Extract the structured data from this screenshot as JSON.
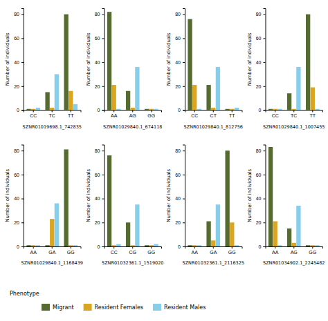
{
  "chart_data": [
    {
      "type": "bar",
      "xlabel": "SZNR01019698.1_742835",
      "ylabel": "Number of individuals",
      "categories": [
        "CC",
        "TC",
        "TT"
      ],
      "series": [
        {
          "name": "Migrant",
          "color": "#556B2F",
          "values": [
            1,
            15,
            80
          ]
        },
        {
          "name": "Resident Females",
          "color": "#DAA520",
          "values": [
            1,
            2,
            16
          ]
        },
        {
          "name": "Resident Males",
          "color": "#87CEEB",
          "values": [
            2,
            30,
            5
          ]
        }
      ],
      "ylim": [
        0,
        85
      ],
      "yticks": [
        0,
        20,
        40,
        60,
        80
      ],
      "grid": false,
      "legend": "lower left",
      "annotations": [
        "Phenotype"
      ]
    },
    {
      "type": "bar",
      "xlabel": "SZNR01029840.1_674118",
      "ylabel": "Number of individuals",
      "categories": [
        "AA",
        "AG",
        "GG"
      ],
      "series": [
        {
          "name": "Migrant",
          "color": "#556B2F",
          "values": [
            82,
            16,
            1
          ]
        },
        {
          "name": "Resident Females",
          "color": "#DAA520",
          "values": [
            21,
            2,
            1
          ]
        },
        {
          "name": "Resident Males",
          "color": "#87CEEB",
          "values": [
            1,
            36,
            1
          ]
        }
      ],
      "ylim": [
        0,
        85
      ],
      "yticks": [
        0,
        20,
        40,
        60,
        80
      ],
      "grid": false
    },
    {
      "type": "bar",
      "xlabel": "SZNR01029840.1_812756",
      "ylabel": "Number of individuals",
      "categories": [
        "CC",
        "CT",
        "TT"
      ],
      "series": [
        {
          "name": "Migrant",
          "color": "#556B2F",
          "values": [
            76,
            21,
            1
          ]
        },
        {
          "name": "Resident Females",
          "color": "#DAA520",
          "values": [
            21,
            2,
            1
          ]
        },
        {
          "name": "Resident Males",
          "color": "#87CEEB",
          "values": [
            1,
            36,
            2
          ]
        }
      ],
      "ylim": [
        0,
        85
      ],
      "yticks": [
        0,
        20,
        40,
        60,
        80
      ],
      "grid": false
    },
    {
      "type": "bar",
      "xlabel": "SZNR01029840.1_1007455",
      "ylabel": "Number of individuals",
      "categories": [
        "CC",
        "TC",
        "TT"
      ],
      "series": [
        {
          "name": "Migrant",
          "color": "#556B2F",
          "values": [
            1,
            14,
            80
          ]
        },
        {
          "name": "Resident Females",
          "color": "#DAA520",
          "values": [
            1,
            1,
            19
          ]
        },
        {
          "name": "Resident Males",
          "color": "#87CEEB",
          "values": [
            1,
            36,
            1
          ]
        }
      ],
      "ylim": [
        0,
        85
      ],
      "yticks": [
        0,
        20,
        40,
        60,
        80
      ],
      "grid": false
    },
    {
      "type": "bar",
      "xlabel": "SZNR01029840.1_1168439",
      "ylabel": "Number of individuals",
      "categories": [
        "AA",
        "GA",
        "GG"
      ],
      "series": [
        {
          "name": "Migrant",
          "color": "#556B2F",
          "values": [
            1,
            1,
            81
          ]
        },
        {
          "name": "Resident Females",
          "color": "#DAA520",
          "values": [
            1,
            23,
            1
          ]
        },
        {
          "name": "Resident Males",
          "color": "#87CEEB",
          "values": [
            1,
            36,
            1
          ]
        }
      ],
      "ylim": [
        0,
        85
      ],
      "yticks": [
        0,
        20,
        40,
        60,
        80
      ],
      "grid": false
    },
    {
      "type": "bar",
      "xlabel": "SZNR01032361.1_1519020",
      "ylabel": "Number of individuals",
      "categories": [
        "CC",
        "CG",
        "GG"
      ],
      "series": [
        {
          "name": "Migrant",
          "color": "#556B2F",
          "values": [
            76,
            20,
            1
          ]
        },
        {
          "name": "Resident Females",
          "color": "#DAA520",
          "values": [
            1,
            1,
            1
          ]
        },
        {
          "name": "Resident Males",
          "color": "#87CEEB",
          "values": [
            2,
            35,
            2
          ]
        }
      ],
      "ylim": [
        0,
        85
      ],
      "yticks": [
        0,
        20,
        40,
        60,
        80
      ],
      "grid": false
    },
    {
      "type": "bar",
      "xlabel": "SZNR01032361.1_2116325",
      "ylabel": "Number of individuals",
      "categories": [
        "AA",
        "GA",
        "GG"
      ],
      "series": [
        {
          "name": "Migrant",
          "color": "#556B2F",
          "values": [
            1,
            21,
            80
          ]
        },
        {
          "name": "Resident Females",
          "color": "#DAA520",
          "values": [
            1,
            5,
            20
          ]
        },
        {
          "name": "Resident Males",
          "color": "#87CEEB",
          "values": [
            1,
            35,
            1
          ]
        }
      ],
      "ylim": [
        0,
        85
      ],
      "yticks": [
        0,
        20,
        40,
        60,
        80
      ],
      "grid": false
    },
    {
      "type": "bar",
      "xlabel": "SZNR01034902.1_2245482",
      "ylabel": "Number of individuals",
      "categories": [
        "AA",
        "AG",
        "GG"
      ],
      "series": [
        {
          "name": "Migrant",
          "color": "#556B2F",
          "values": [
            83,
            15,
            1
          ]
        },
        {
          "name": "Resident Females",
          "color": "#DAA520",
          "values": [
            21,
            3,
            1
          ]
        },
        {
          "name": "Resident Males",
          "color": "#87CEEB",
          "values": [
            1,
            34,
            1
          ]
        }
      ],
      "ylim": [
        0,
        85
      ],
      "yticks": [
        0,
        20,
        40,
        60,
        80
      ],
      "grid": false
    }
  ]
}
